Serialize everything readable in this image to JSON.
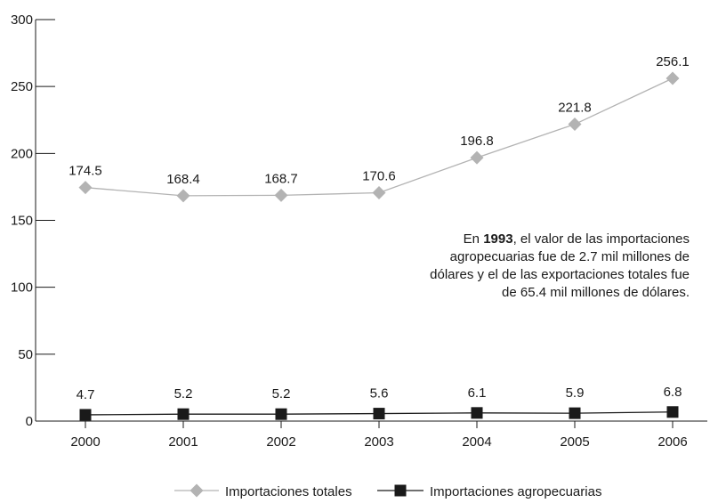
{
  "chart_data": {
    "type": "line",
    "categories": [
      "2000",
      "2001",
      "2002",
      "2003",
      "2004",
      "2005",
      "2006"
    ],
    "series": [
      {
        "name": "Importaciones totales",
        "values": [
          174.5,
          168.4,
          168.7,
          170.6,
          196.8,
          221.8,
          256.1
        ],
        "labels": [
          "174.5",
          "168.4",
          "168.7",
          "170.6",
          "196.8",
          "221.8",
          "256.1"
        ],
        "color": "#b3b3b3",
        "marker": "diamond"
      },
      {
        "name": "Importaciones agropecuarias",
        "values": [
          4.7,
          5.2,
          5.2,
          5.6,
          6.1,
          5.9,
          6.8
        ],
        "labels": [
          "4.7",
          "5.2",
          "5.2",
          "5.6",
          "6.1",
          "5.9",
          "6.8"
        ],
        "color": "#1a1a1a",
        "marker": "square"
      }
    ],
    "yticks": [
      "0",
      "50",
      "100",
      "150",
      "200",
      "250",
      "300"
    ],
    "ylim": [
      0,
      300
    ],
    "xlabel": "",
    "ylabel": "",
    "grid": false,
    "legend_position": "bottom-center",
    "annotation": {
      "prefix": "En ",
      "bold": "1993",
      "text": ", el valor de las importaciones agropecuarias fue de 2.7 mil millones de dólares y el de las exportaciones totales fue de 65.4 mil millones de dólares."
    }
  }
}
